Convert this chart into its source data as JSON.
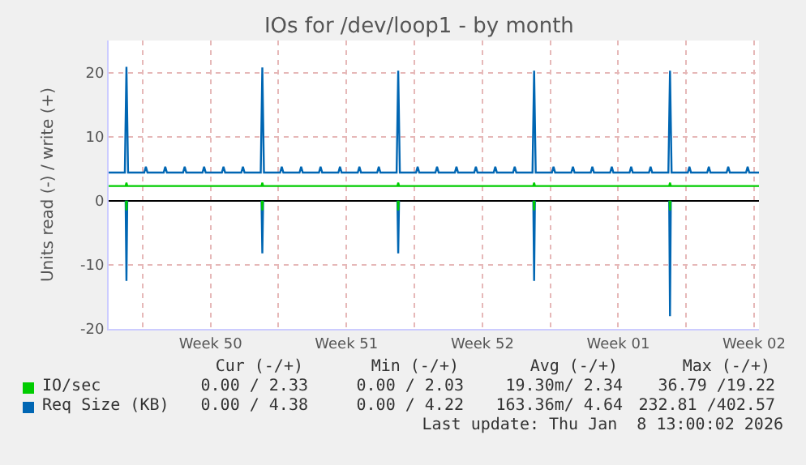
{
  "chart_data": {
    "type": "line",
    "title": "IOs for /dev/loop1 - by month",
    "ylabel": "Units read (-) / write (+)",
    "xlim": [
      "2025-12-06T06:00",
      "2026-01-08T18:00"
    ],
    "xticks": [
      {
        "value": "2025-12-08T00:00",
        "label": null
      },
      {
        "value": "2025-12-11T12:00",
        "label": "Week 50"
      },
      {
        "value": "2025-12-15T00:00",
        "label": null
      },
      {
        "value": "2025-12-18T12:00",
        "label": "Week 51"
      },
      {
        "value": "2025-12-22T00:00",
        "label": null
      },
      {
        "value": "2025-12-25T12:00",
        "label": "Week 52"
      },
      {
        "value": "2025-12-29T00:00",
        "label": null
      },
      {
        "value": "2026-01-01T12:00",
        "label": "Week 01"
      },
      {
        "value": "2026-01-05T00:00",
        "label": null
      },
      {
        "value": "2026-01-08T12:00",
        "label": "Week 02"
      }
    ],
    "ylim": [
      -20,
      25
    ],
    "yticks": [
      -20,
      -10,
      0,
      10,
      20
    ],
    "grid": true,
    "legend": "bottom",
    "marker": "none",
    "line_style": "solid",
    "series": [
      {
        "name": "IO/sec",
        "color": "#00cc00",
        "x": [
          "2025-12-06T06:00",
          "2025-12-07T03:00",
          "2025-12-07T04:00",
          "2025-12-07T05:00",
          "2025-12-14T03:00",
          "2025-12-14T04:00",
          "2025-12-14T05:00",
          "2025-12-21T03:00",
          "2025-12-21T04:00",
          "2025-12-21T05:00",
          "2025-12-28T03:00",
          "2025-12-28T04:00",
          "2025-12-28T05:00",
          "2026-01-04T03:00",
          "2026-01-04T04:00",
          "2026-01-04T05:00",
          "2026-01-08T18:00"
        ],
        "values": [
          2.3,
          2.3,
          2.8,
          2.3,
          2.3,
          2.8,
          2.3,
          2.3,
          2.8,
          2.3,
          2.3,
          2.8,
          2.3,
          2.3,
          2.8,
          2.3,
          2.3
        ]
      },
      {
        "name": "Req Size (KB)",
        "color": "#0066b3",
        "x": [
          "2025-12-06T06:00",
          "2025-12-07T02:00",
          "2025-12-07T04:00",
          "2025-12-07T06:00",
          "2025-12-08T02:00",
          "2025-12-08T04:00",
          "2025-12-08T06:00",
          "2025-12-09T02:00",
          "2025-12-09T04:00",
          "2025-12-09T06:00",
          "2025-12-10T02:00",
          "2025-12-10T04:00",
          "2025-12-10T06:00",
          "2025-12-11T02:00",
          "2025-12-11T04:00",
          "2025-12-11T06:00",
          "2025-12-12T02:00",
          "2025-12-12T04:00",
          "2025-12-12T06:00",
          "2025-12-13T02:00",
          "2025-12-13T04:00",
          "2025-12-13T06:00",
          "2025-12-14T02:00",
          "2025-12-14T04:00",
          "2025-12-14T06:00",
          "2025-12-15T02:00",
          "2025-12-15T04:00",
          "2025-12-15T06:00",
          "2025-12-16T02:00",
          "2025-12-16T04:00",
          "2025-12-16T06:00",
          "2025-12-17T02:00",
          "2025-12-17T04:00",
          "2025-12-17T06:00",
          "2025-12-18T02:00",
          "2025-12-18T04:00",
          "2025-12-18T06:00",
          "2025-12-19T02:00",
          "2025-12-19T04:00",
          "2025-12-19T06:00",
          "2025-12-20T02:00",
          "2025-12-20T04:00",
          "2025-12-20T06:00",
          "2025-12-21T02:00",
          "2025-12-21T04:00",
          "2025-12-21T06:00",
          "2025-12-22T02:00",
          "2025-12-22T04:00",
          "2025-12-22T06:00",
          "2025-12-23T02:00",
          "2025-12-23T04:00",
          "2025-12-23T06:00",
          "2025-12-24T02:00",
          "2025-12-24T04:00",
          "2025-12-24T06:00",
          "2025-12-25T02:00",
          "2025-12-25T04:00",
          "2025-12-25T06:00",
          "2025-12-26T02:00",
          "2025-12-26T04:00",
          "2025-12-26T06:00",
          "2025-12-27T02:00",
          "2025-12-27T04:00",
          "2025-12-27T06:00",
          "2025-12-28T02:00",
          "2025-12-28T04:00",
          "2025-12-28T06:00",
          "2025-12-29T02:00",
          "2025-12-29T04:00",
          "2025-12-29T06:00",
          "2025-12-30T02:00",
          "2025-12-30T04:00",
          "2025-12-30T06:00",
          "2025-12-31T02:00",
          "2025-12-31T04:00",
          "2025-12-31T06:00",
          "2026-01-01T02:00",
          "2026-01-01T04:00",
          "2026-01-01T06:00",
          "2026-01-02T02:00",
          "2026-01-02T04:00",
          "2026-01-02T06:00",
          "2026-01-03T02:00",
          "2026-01-03T04:00",
          "2026-01-03T06:00",
          "2026-01-04T02:00",
          "2026-01-04T04:00",
          "2026-01-04T06:00",
          "2026-01-05T02:00",
          "2026-01-05T04:00",
          "2026-01-05T06:00",
          "2026-01-06T02:00",
          "2026-01-06T04:00",
          "2026-01-06T06:00",
          "2026-01-07T02:00",
          "2026-01-07T04:00",
          "2026-01-07T06:00",
          "2026-01-08T02:00",
          "2026-01-08T04:00",
          "2026-01-08T06:00",
          "2026-01-08T18:00"
        ],
        "values": [
          4.4,
          4.4,
          20.9,
          4.4,
          4.4,
          5.3,
          4.4,
          4.4,
          5.3,
          4.4,
          4.4,
          5.3,
          4.4,
          4.4,
          5.3,
          4.4,
          4.4,
          5.3,
          4.4,
          4.4,
          5.3,
          4.4,
          4.4,
          20.8,
          4.4,
          4.4,
          5.3,
          4.4,
          4.4,
          5.3,
          4.4,
          4.4,
          5.3,
          4.4,
          4.4,
          5.3,
          4.4,
          4.4,
          5.3,
          4.4,
          4.4,
          5.3,
          4.4,
          4.4,
          20.3,
          4.4,
          4.4,
          5.3,
          4.4,
          4.4,
          5.3,
          4.4,
          4.4,
          5.3,
          4.4,
          4.4,
          5.3,
          4.4,
          4.4,
          5.3,
          4.4,
          4.4,
          5.3,
          4.4,
          4.4,
          20.3,
          4.4,
          4.4,
          5.3,
          4.4,
          4.4,
          5.3,
          4.4,
          4.4,
          5.3,
          4.4,
          4.4,
          5.3,
          4.4,
          4.4,
          5.3,
          4.4,
          4.4,
          5.3,
          4.4,
          4.4,
          20.3,
          4.4,
          4.4,
          5.3,
          4.4,
          4.4,
          5.3,
          4.4,
          4.4,
          5.3,
          4.4,
          4.4,
          5.3,
          4.4,
          4.4
        ]
      },
      {
        "color": "#0066b3",
        "x": [
          "2025-12-07T03:00",
          "2025-12-07T04:00",
          "2025-12-07T05:00",
          "2025-12-07T06:00",
          "2025-12-14T03:00",
          "2025-12-14T04:00",
          "2025-12-14T05:00",
          "2025-12-14T06:00",
          "2025-12-21T03:00",
          "2025-12-21T04:00",
          "2025-12-21T05:00",
          "2025-12-21T06:00",
          "2025-12-28T03:00",
          "2025-12-28T04:00",
          "2025-12-28T05:00",
          "2025-12-28T06:00",
          "2026-01-04T03:00",
          "2026-01-04T04:00",
          "2026-01-04T05:00"
        ],
        "values": [
          0,
          -12.5,
          0,
          null,
          0,
          -8.2,
          0,
          null,
          0,
          -8.2,
          0,
          null,
          0,
          -12.5,
          0,
          null,
          0,
          -18,
          0
        ]
      },
      {
        "color": "#00cc00",
        "x": [
          "2025-12-07T03:30",
          "2025-12-07T04:00",
          "2025-12-07T04:30",
          "2025-12-07T06:00",
          "2025-12-14T03:30",
          "2025-12-14T04:00",
          "2025-12-14T04:30",
          "2025-12-14T06:00",
          "2025-12-21T03:30",
          "2025-12-21T04:00",
          "2025-12-21T04:30",
          "2025-12-21T06:00",
          "2025-12-28T03:30",
          "2025-12-28T04:00",
          "2025-12-28T04:30",
          "2025-12-28T06:00",
          "2026-01-04T03:30",
          "2026-01-04T04:00",
          "2026-01-04T04:30"
        ],
        "values": [
          0,
          -1.5,
          0,
          null,
          0,
          -1.5,
          0,
          null,
          0,
          -1.5,
          0,
          null,
          0,
          -1.5,
          0,
          null,
          0,
          -1.5,
          0
        ]
      }
    ],
    "annotations": [
      "Cur (-/+)",
      "Min (-/+)",
      "Avg (-/+)",
      "Max (-/+)",
      "0.00 / 2.33",
      "0.00 / 2.03",
      "19.30m/ 2.34",
      "36.79 /19.22",
      "0.00 / 4.38",
      "0.00 / 4.22",
      "163.36m/ 4.64",
      "232.81 /402.57",
      "Last update: Thu Jan  8 13:00:02 2026"
    ]
  }
}
